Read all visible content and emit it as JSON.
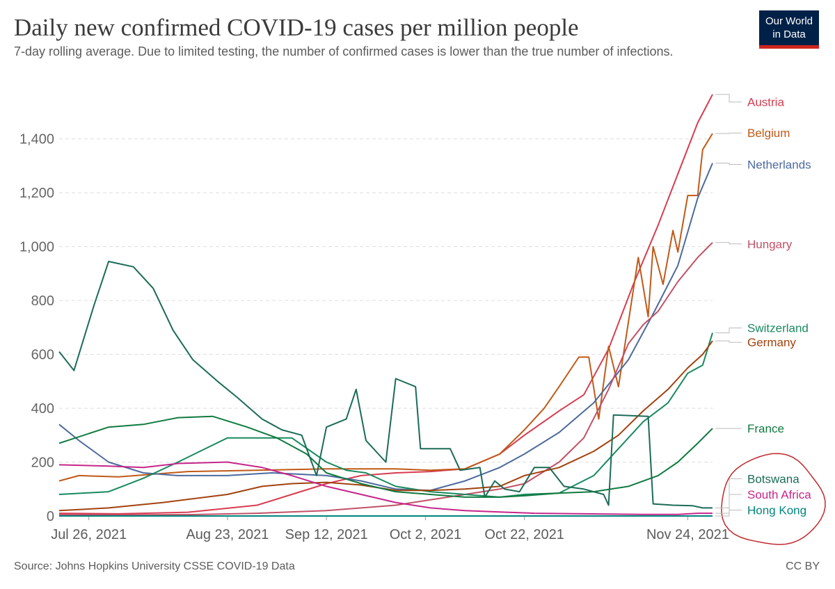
{
  "header": {
    "title": "Daily new confirmed COVID-19 cases per million people",
    "subtitle": "7-day rolling average. Due to limited testing, the number of confirmed cases is lower than the true number of infections.",
    "logo_line1": "Our World",
    "logo_line2": "in Data"
  },
  "footer": {
    "source": "Source: Johns Hopkins University CSSE COVID-19 Data",
    "license": "CC BY"
  },
  "chart_data": {
    "type": "line",
    "x_start": "2021-07-20",
    "x_end": "2021-11-29",
    "xticks": [
      {
        "label": "Jul 26, 2021",
        "date": "2021-07-26"
      },
      {
        "label": "Aug 23, 2021",
        "date": "2021-08-23"
      },
      {
        "label": "Sep 12, 2021",
        "date": "2021-09-12"
      },
      {
        "label": "Oct 2, 2021",
        "date": "2021-10-02"
      },
      {
        "label": "Oct 22, 2021",
        "date": "2021-10-22"
      },
      {
        "label": "Nov 24, 2021",
        "date": "2021-11-24"
      }
    ],
    "ylim": [
      0,
      1580
    ],
    "yticks": [
      0,
      200,
      400,
      600,
      800,
      1000,
      1200,
      1400
    ],
    "grid": true,
    "annotation": {
      "shape": "hand-drawn circle",
      "color": "#c0282d",
      "around": [
        "Botswana",
        "South Africa",
        "Hong Kong"
      ]
    },
    "series": [
      {
        "name": "Austria",
        "color": "#d73c50",
        "points": [
          [
            "2021-07-20",
            10
          ],
          [
            "2021-08-01",
            8
          ],
          [
            "2021-08-15",
            14
          ],
          [
            "2021-08-29",
            40
          ],
          [
            "2021-09-05",
            80
          ],
          [
            "2021-09-12",
            120
          ],
          [
            "2021-09-19",
            150
          ],
          [
            "2021-09-26",
            160
          ],
          [
            "2021-10-03",
            165
          ],
          [
            "2021-10-10",
            175
          ],
          [
            "2021-10-17",
            230
          ],
          [
            "2021-10-22",
            300
          ],
          [
            "2021-10-29",
            390
          ],
          [
            "2021-11-03",
            450
          ],
          [
            "2021-11-08",
            620
          ],
          [
            "2021-11-13",
            860
          ],
          [
            "2021-11-18",
            1080
          ],
          [
            "2021-11-22",
            1270
          ],
          [
            "2021-11-26",
            1460
          ],
          [
            "2021-11-29",
            1565
          ]
        ]
      },
      {
        "name": "Belgium",
        "color": "#c05917",
        "points": [
          [
            "2021-07-20",
            130
          ],
          [
            "2021-07-24",
            150
          ],
          [
            "2021-08-01",
            145
          ],
          [
            "2021-08-15",
            165
          ],
          [
            "2021-08-29",
            170
          ],
          [
            "2021-09-12",
            175
          ],
          [
            "2021-09-26",
            175
          ],
          [
            "2021-10-03",
            170
          ],
          [
            "2021-10-10",
            175
          ],
          [
            "2021-10-17",
            230
          ],
          [
            "2021-10-22",
            320
          ],
          [
            "2021-10-26",
            400
          ],
          [
            "2021-10-29",
            480
          ],
          [
            "2021-11-02",
            590
          ],
          [
            "2021-11-04",
            590
          ],
          [
            "2021-11-06",
            360
          ],
          [
            "2021-11-08",
            630
          ],
          [
            "2021-11-10",
            480
          ],
          [
            "2021-11-12",
            720
          ],
          [
            "2021-11-14",
            960
          ],
          [
            "2021-11-16",
            740
          ],
          [
            "2021-11-17",
            1000
          ],
          [
            "2021-11-19",
            860
          ],
          [
            "2021-11-21",
            1060
          ],
          [
            "2021-11-22",
            980
          ],
          [
            "2021-11-24",
            1190
          ],
          [
            "2021-11-26",
            1190
          ],
          [
            "2021-11-27",
            1360
          ],
          [
            "2021-11-29",
            1420
          ]
        ]
      },
      {
        "name": "Netherlands",
        "color": "#4c6a9c",
        "points": [
          [
            "2021-07-20",
            340
          ],
          [
            "2021-07-24",
            280
          ],
          [
            "2021-07-30",
            200
          ],
          [
            "2021-08-06",
            160
          ],
          [
            "2021-08-13",
            150
          ],
          [
            "2021-08-23",
            150
          ],
          [
            "2021-09-01",
            160
          ],
          [
            "2021-09-12",
            150
          ],
          [
            "2021-09-19",
            130
          ],
          [
            "2021-09-26",
            100
          ],
          [
            "2021-10-03",
            95
          ],
          [
            "2021-10-10",
            130
          ],
          [
            "2021-10-17",
            180
          ],
          [
            "2021-10-22",
            230
          ],
          [
            "2021-10-29",
            310
          ],
          [
            "2021-11-05",
            420
          ],
          [
            "2021-11-12",
            580
          ],
          [
            "2021-11-17",
            750
          ],
          [
            "2021-11-22",
            930
          ],
          [
            "2021-11-26",
            1180
          ],
          [
            "2021-11-29",
            1310
          ]
        ]
      },
      {
        "name": "Hungary",
        "color": "#c15065",
        "points": [
          [
            "2021-07-20",
            5
          ],
          [
            "2021-08-01",
            4
          ],
          [
            "2021-08-15",
            5
          ],
          [
            "2021-08-29",
            10
          ],
          [
            "2021-09-12",
            20
          ],
          [
            "2021-09-26",
            40
          ],
          [
            "2021-10-03",
            60
          ],
          [
            "2021-10-10",
            80
          ],
          [
            "2021-10-17",
            100
          ],
          [
            "2021-10-22",
            120
          ],
          [
            "2021-10-29",
            200
          ],
          [
            "2021-11-03",
            290
          ],
          [
            "2021-11-08",
            470
          ],
          [
            "2021-11-12",
            640
          ],
          [
            "2021-11-15",
            710
          ],
          [
            "2021-11-18",
            760
          ],
          [
            "2021-11-22",
            870
          ],
          [
            "2021-11-26",
            960
          ],
          [
            "2021-11-29",
            1015
          ]
        ]
      },
      {
        "name": "Switzerland",
        "color": "#18895e",
        "points": [
          [
            "2021-07-20",
            80
          ],
          [
            "2021-07-30",
            90
          ],
          [
            "2021-08-06",
            140
          ],
          [
            "2021-08-13",
            200
          ],
          [
            "2021-08-23",
            290
          ],
          [
            "2021-08-30",
            290
          ],
          [
            "2021-09-05",
            290
          ],
          [
            "2021-09-12",
            200
          ],
          [
            "2021-09-16",
            170
          ],
          [
            "2021-09-20",
            160
          ],
          [
            "2021-09-26",
            110
          ],
          [
            "2021-10-03",
            90
          ],
          [
            "2021-10-10",
            80
          ],
          [
            "2021-10-17",
            70
          ],
          [
            "2021-10-22",
            80
          ],
          [
            "2021-10-29",
            85
          ],
          [
            "2021-11-05",
            150
          ],
          [
            "2021-11-10",
            250
          ],
          [
            "2021-11-15",
            350
          ],
          [
            "2021-11-20",
            420
          ],
          [
            "2021-11-24",
            530
          ],
          [
            "2021-11-27",
            560
          ],
          [
            "2021-11-29",
            680
          ]
        ]
      },
      {
        "name": "Germany",
        "color": "#a2420e",
        "points": [
          [
            "2021-07-20",
            20
          ],
          [
            "2021-07-30",
            30
          ],
          [
            "2021-08-10",
            50
          ],
          [
            "2021-08-23",
            80
          ],
          [
            "2021-08-30",
            110
          ],
          [
            "2021-09-05",
            120
          ],
          [
            "2021-09-12",
            125
          ],
          [
            "2021-09-19",
            115
          ],
          [
            "2021-09-26",
            95
          ],
          [
            "2021-10-03",
            95
          ],
          [
            "2021-10-10",
            100
          ],
          [
            "2021-10-17",
            110
          ],
          [
            "2021-10-22",
            150
          ],
          [
            "2021-10-29",
            180
          ],
          [
            "2021-11-05",
            240
          ],
          [
            "2021-11-10",
            300
          ],
          [
            "2021-11-15",
            390
          ],
          [
            "2021-11-20",
            470
          ],
          [
            "2021-11-24",
            550
          ],
          [
            "2021-11-27",
            600
          ],
          [
            "2021-11-29",
            650
          ]
        ]
      },
      {
        "name": "France",
        "color": "#0f7a3f",
        "points": [
          [
            "2021-07-20",
            270
          ],
          [
            "2021-07-30",
            330
          ],
          [
            "2021-08-06",
            340
          ],
          [
            "2021-08-13",
            365
          ],
          [
            "2021-08-20",
            370
          ],
          [
            "2021-08-27",
            330
          ],
          [
            "2021-09-02",
            290
          ],
          [
            "2021-09-08",
            230
          ],
          [
            "2021-09-12",
            160
          ],
          [
            "2021-09-19",
            120
          ],
          [
            "2021-09-26",
            90
          ],
          [
            "2021-10-03",
            80
          ],
          [
            "2021-10-10",
            70
          ],
          [
            "2021-10-17",
            70
          ],
          [
            "2021-10-22",
            75
          ],
          [
            "2021-10-29",
            85
          ],
          [
            "2021-11-05",
            90
          ],
          [
            "2021-11-12",
            110
          ],
          [
            "2021-11-18",
            150
          ],
          [
            "2021-11-22",
            200
          ],
          [
            "2021-11-26",
            270
          ],
          [
            "2021-11-29",
            325
          ]
        ]
      },
      {
        "name": "Botswana",
        "color": "#1b6b57",
        "points": [
          [
            "2021-07-20",
            610
          ],
          [
            "2021-07-23",
            540
          ],
          [
            "2021-07-27",
            780
          ],
          [
            "2021-07-30",
            945
          ],
          [
            "2021-08-04",
            925
          ],
          [
            "2021-08-08",
            845
          ],
          [
            "2021-08-12",
            690
          ],
          [
            "2021-08-16",
            580
          ],
          [
            "2021-08-21",
            500
          ],
          [
            "2021-08-25",
            440
          ],
          [
            "2021-08-30",
            360
          ],
          [
            "2021-09-03",
            320
          ],
          [
            "2021-09-07",
            300
          ],
          [
            "2021-09-10",
            150
          ],
          [
            "2021-09-12",
            330
          ],
          [
            "2021-09-16",
            360
          ],
          [
            "2021-09-18",
            470
          ],
          [
            "2021-09-20",
            280
          ],
          [
            "2021-09-24",
            200
          ],
          [
            "2021-09-26",
            510
          ],
          [
            "2021-09-30",
            480
          ],
          [
            "2021-10-01",
            250
          ],
          [
            "2021-10-07",
            250
          ],
          [
            "2021-10-09",
            170
          ],
          [
            "2021-10-13",
            180
          ],
          [
            "2021-10-14",
            70
          ],
          [
            "2021-10-16",
            130
          ],
          [
            "2021-10-18",
            100
          ],
          [
            "2021-10-21",
            90
          ],
          [
            "2021-10-24",
            180
          ],
          [
            "2021-10-27",
            180
          ],
          [
            "2021-10-30",
            110
          ],
          [
            "2021-11-03",
            100
          ],
          [
            "2021-11-07",
            80
          ],
          [
            "2021-11-08",
            40
          ],
          [
            "2021-11-09",
            375
          ],
          [
            "2021-11-16",
            370
          ],
          [
            "2021-11-17",
            45
          ],
          [
            "2021-11-21",
            40
          ],
          [
            "2021-11-25",
            38
          ],
          [
            "2021-11-27",
            30
          ],
          [
            "2021-11-29",
            30
          ]
        ]
      },
      {
        "name": "South Africa",
        "color": "#c5268a",
        "points": [
          [
            "2021-07-20",
            190
          ],
          [
            "2021-07-30",
            185
          ],
          [
            "2021-08-06",
            180
          ],
          [
            "2021-08-13",
            195
          ],
          [
            "2021-08-23",
            200
          ],
          [
            "2021-08-30",
            180
          ],
          [
            "2021-09-05",
            150
          ],
          [
            "2021-09-12",
            110
          ],
          [
            "2021-09-19",
            80
          ],
          [
            "2021-09-26",
            50
          ],
          [
            "2021-10-03",
            30
          ],
          [
            "2021-10-10",
            20
          ],
          [
            "2021-10-17",
            15
          ],
          [
            "2021-10-24",
            10
          ],
          [
            "2021-11-03",
            8
          ],
          [
            "2021-11-15",
            6
          ],
          [
            "2021-11-22",
            6
          ],
          [
            "2021-11-26",
            10
          ],
          [
            "2021-11-29",
            10
          ]
        ]
      },
      {
        "name": "Hong Kong",
        "color": "#00847e",
        "points": [
          [
            "2021-07-20",
            0
          ],
          [
            "2021-11-29",
            0
          ]
        ]
      }
    ],
    "label_positions": [
      {
        "name": "Austria",
        "label_value": 1537
      },
      {
        "name": "Belgium",
        "label_value": 1422
      },
      {
        "name": "Netherlands",
        "label_value": 1305
      },
      {
        "name": "Hungary",
        "label_value": 1010
      },
      {
        "name": "Switzerland",
        "label_value": 698
      },
      {
        "name": "Germany",
        "label_value": 645
      },
      {
        "name": "France",
        "label_value": 325
      },
      {
        "name": "Botswana",
        "label_value": 138
      },
      {
        "name": "South Africa",
        "label_value": 80
      },
      {
        "name": "Hong Kong",
        "label_value": 22
      }
    ]
  }
}
